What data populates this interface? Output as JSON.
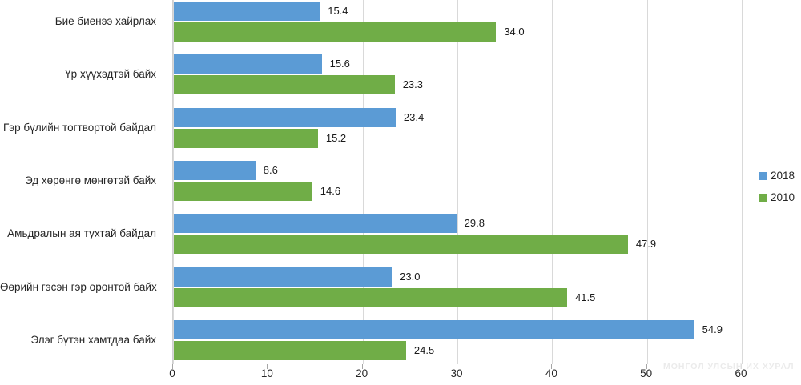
{
  "chart_data": {
    "type": "bar",
    "orientation": "horizontal",
    "title": "",
    "xlabel": "",
    "ylabel": "",
    "categories": [
      "Бие биенээ хайрлах",
      "Үр хүүхэдтэй байх",
      "Гэр бүлийн тогтвортой байдал",
      "Эд хөрөнгө мөнгөтэй байх",
      "Амьдралын ая тухтай байдал",
      "Өөрийн гэсэн гэр оронтой байх",
      "Элэг бүтэн хамтдаа байх"
    ],
    "series": [
      {
        "name": "2018",
        "color": "#5B9BD5",
        "values": [
          15.4,
          15.6,
          23.4,
          8.6,
          29.8,
          23.0,
          54.9
        ]
      },
      {
        "name": "2010",
        "color": "#70AD47",
        "values": [
          34.0,
          23.3,
          15.2,
          14.6,
          47.9,
          41.5,
          24.5
        ]
      }
    ],
    "xlim": [
      0,
      60
    ],
    "xticks": [
      0,
      10,
      20,
      30,
      40,
      50,
      60
    ],
    "grid": true,
    "data_labels": true,
    "legend_position": "right"
  },
  "watermark": "МОНГОЛ УЛСЫН ИХ ХУРАЛ",
  "ui_colors": {
    "background": "#ffffff",
    "gridline": "#d9d9d9",
    "tick_mark": "#a6a6a6",
    "label_text": "#262626"
  }
}
